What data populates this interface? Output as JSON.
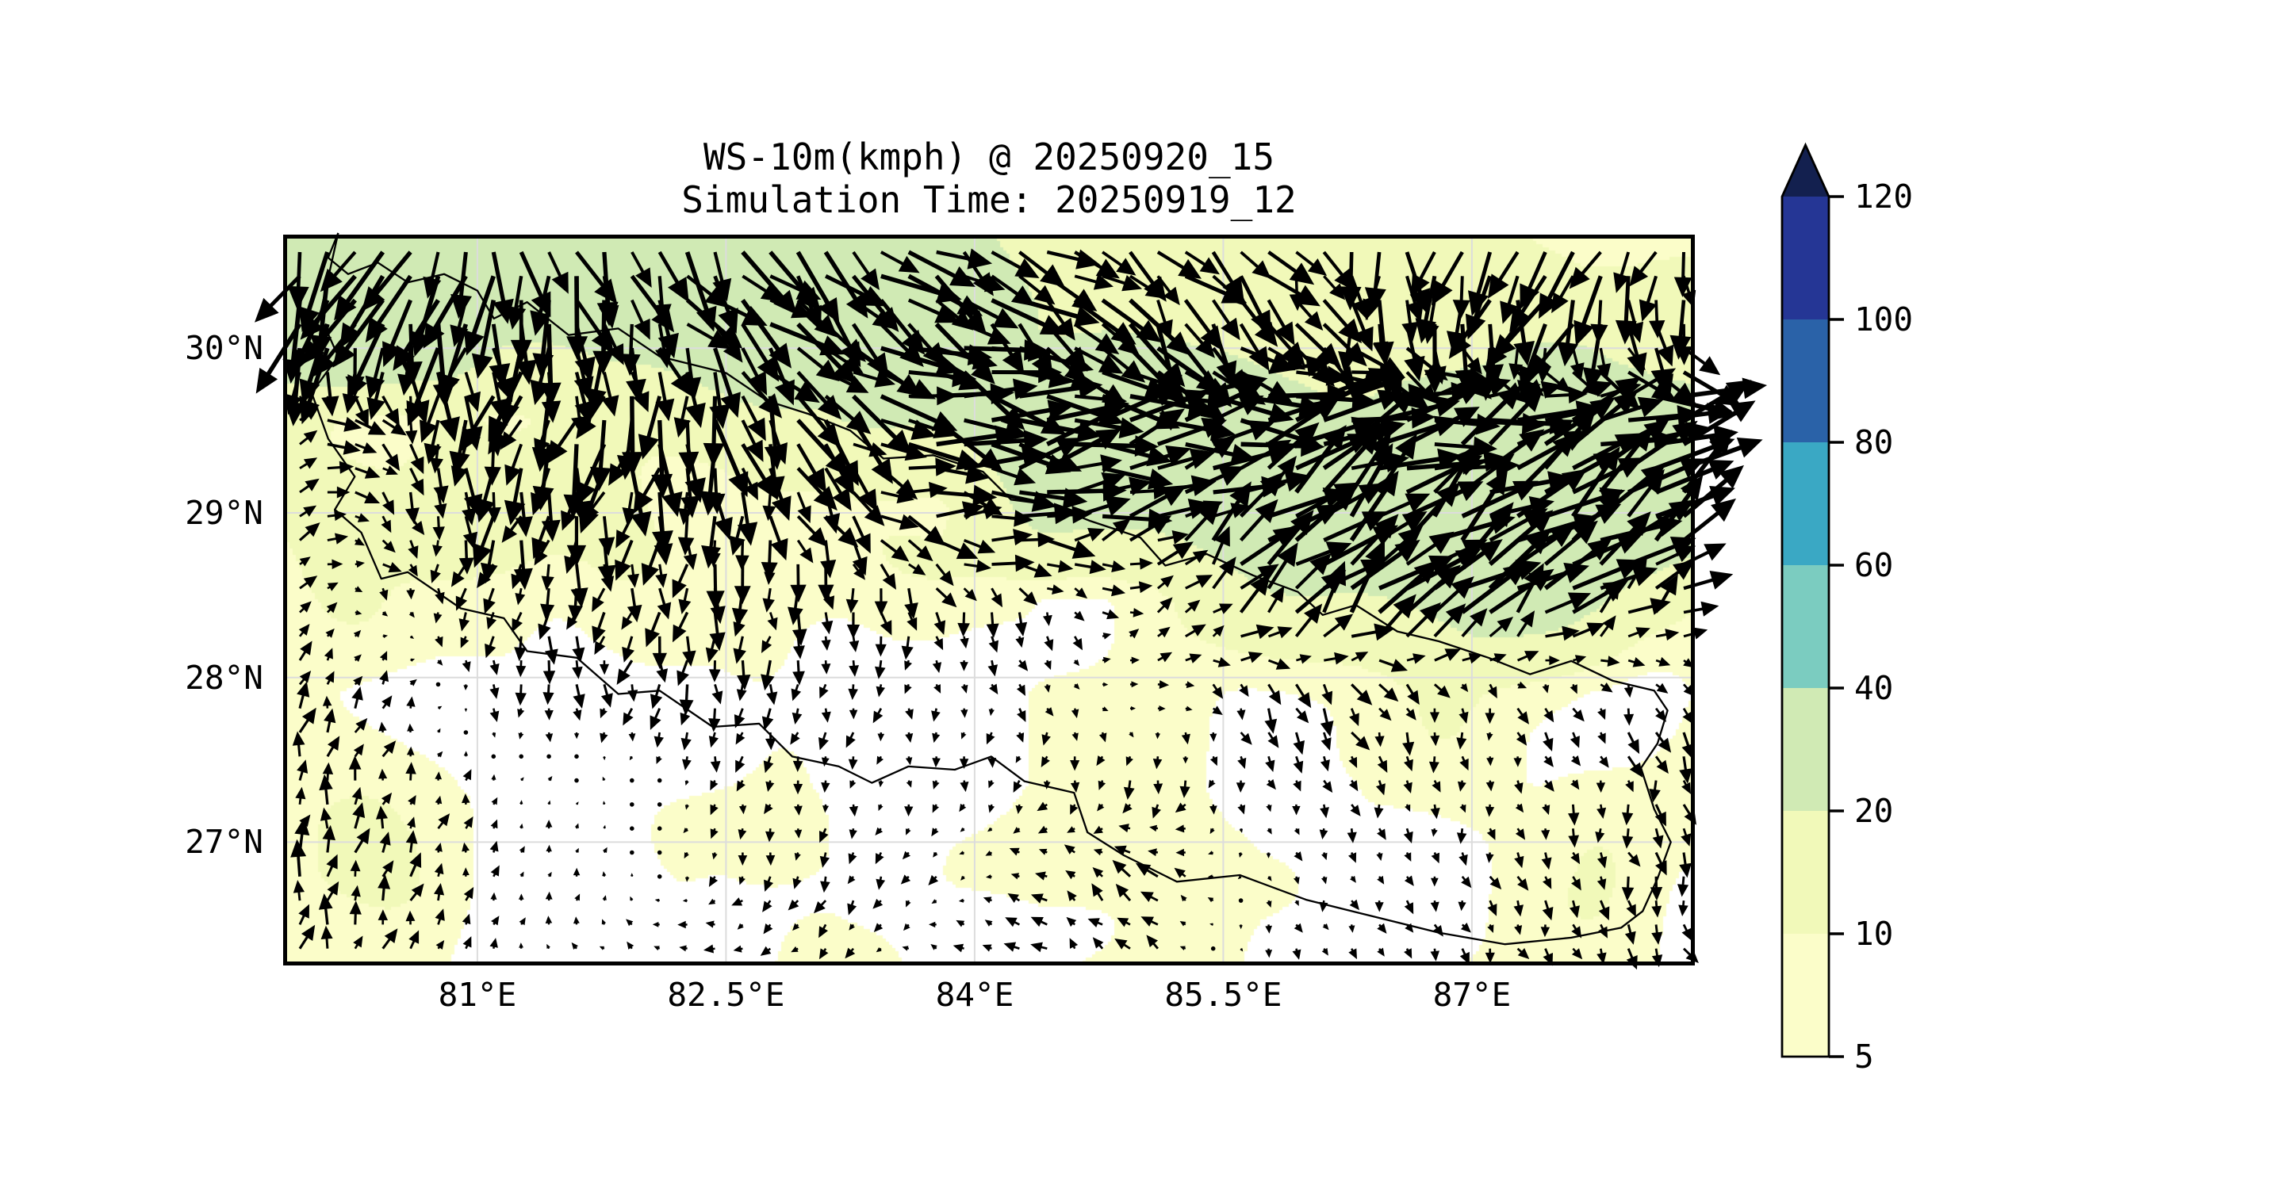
{
  "figure": {
    "title_line1": "WS-10m(kmph) @ 20250920_15",
    "title_line2": "Simulation Time: 20250919_12"
  },
  "axes": {
    "x_ticks": [
      {
        "label": "81°E",
        "lon": 81.0
      },
      {
        "label": "82.5°E",
        "lon": 82.5
      },
      {
        "label": "84°E",
        "lon": 84.0
      },
      {
        "label": "85.5°E",
        "lon": 85.5
      },
      {
        "label": "87°E",
        "lon": 87.0
      }
    ],
    "y_ticks": [
      {
        "label": "30°N",
        "lat": 30.0
      },
      {
        "label": "29°N",
        "lat": 29.0
      },
      {
        "label": "28°N",
        "lat": 28.0
      },
      {
        "label": "27°N",
        "lat": 27.0
      }
    ]
  },
  "colorbar": {
    "levels": [
      5,
      10,
      20,
      40,
      60,
      80,
      100,
      120
    ],
    "tick_labels": [
      "120",
      "100",
      "80",
      "60",
      "40",
      "20",
      "10",
      "5"
    ],
    "segment_colors_bottom_to_top": [
      "#fbfdc9",
      "#f1f9b9",
      "#d0eab4",
      "#7bccc0",
      "#3aa8c4",
      "#2a62a8",
      "#253695"
    ],
    "over_color": "#13204f",
    "under_color": "#ffffff"
  },
  "map": {
    "extent": {
      "lon_min": 79.83,
      "lon_max": 88.35,
      "lat_min": 26.25,
      "lat_max": 30.69
    },
    "grid_color": "#dcdcdc",
    "border_color": "#000000",
    "arrow_color": "#000000"
  },
  "chart_data": {
    "type": "heatmap",
    "subtype": "filled-contour wind speed map with quiver arrows",
    "title": "WS-10m(kmph) @ 20250920_15",
    "subtitle": "Simulation Time: 20250919_12",
    "units": "kmph",
    "contour_levels": [
      5,
      10,
      20,
      40,
      60,
      80,
      100,
      120
    ],
    "legend_position": "right",
    "grid_lons": [
      79.83,
      80.49,
      81.14,
      81.8,
      82.45,
      83.11,
      83.76,
      84.42,
      85.07,
      85.73,
      86.38,
      87.04,
      87.69,
      88.35
    ],
    "grid_lats": [
      30.69,
      30.14,
      29.58,
      29.03,
      28.47,
      27.92,
      27.36,
      26.81,
      26.25
    ],
    "wind_u_kmph": [
      [
        -18,
        -15,
        5,
        8,
        18,
        20,
        25,
        22,
        20,
        15,
        0,
        -10,
        -15,
        -10
      ],
      [
        -20,
        -18,
        0,
        10,
        22,
        28,
        30,
        25,
        18,
        15,
        5,
        -5,
        -8,
        10
      ],
      [
        15,
        10,
        -5,
        -10,
        5,
        18,
        35,
        40,
        42,
        40,
        38,
        40,
        42,
        40
      ],
      [
        12,
        8,
        -8,
        -5,
        0,
        10,
        25,
        35,
        20,
        25,
        30,
        35,
        38,
        35
      ],
      [
        5,
        3,
        -3,
        -2,
        -2,
        0,
        3,
        5,
        8,
        15,
        25,
        28,
        20,
        12
      ],
      [
        4,
        2,
        0,
        -1,
        -2,
        -1,
        0,
        2,
        4,
        6,
        5,
        2,
        3,
        4
      ],
      [
        3,
        2,
        1,
        0,
        -1,
        -1,
        0,
        -2,
        -3,
        1,
        2,
        1,
        2,
        3
      ],
      [
        4,
        3,
        1,
        1,
        -2,
        -3,
        -2,
        -6,
        -8,
        1,
        1,
        2,
        2,
        3
      ],
      [
        4,
        3,
        2,
        -4,
        -6,
        -5,
        -4,
        -6,
        -5,
        2,
        2,
        3,
        3,
        4
      ]
    ],
    "wind_v_kmph": [
      [
        -32,
        -35,
        -30,
        -28,
        -25,
        -22,
        -18,
        -12,
        -15,
        -18,
        -25,
        -28,
        -25,
        -22
      ],
      [
        -38,
        -40,
        -35,
        -30,
        -26,
        -20,
        -15,
        -22,
        -25,
        -20,
        -25,
        -28,
        -28,
        -20
      ],
      [
        8,
        -10,
        -25,
        -28,
        -30,
        -22,
        -8,
        0,
        2,
        5,
        8,
        10,
        12,
        10
      ],
      [
        5,
        -8,
        -20,
        -22,
        -20,
        -15,
        -5,
        5,
        15,
        20,
        25,
        28,
        25,
        20
      ],
      [
        8,
        -5,
        -10,
        -12,
        -15,
        -12,
        -10,
        -8,
        5,
        18,
        25,
        25,
        18,
        10
      ],
      [
        10,
        6,
        -8,
        -10,
        -12,
        -8,
        -6,
        -5,
        2,
        -10,
        -12,
        -6,
        -8,
        -10
      ],
      [
        12,
        8,
        3,
        2,
        -4,
        -5,
        -4,
        -6,
        -8,
        -4,
        -6,
        -5,
        -8,
        -10
      ],
      [
        14,
        10,
        4,
        3,
        -5,
        -6,
        -4,
        4,
        6,
        -3,
        -5,
        -6,
        -8,
        -9
      ],
      [
        12,
        9,
        4,
        2,
        3,
        -4,
        2,
        5,
        4,
        -4,
        -5,
        -6,
        -7,
        -8
      ]
    ],
    "wind_speed_kmph": [
      [
        28,
        34,
        26,
        24,
        25,
        26,
        25,
        16,
        14,
        14,
        12,
        10,
        6,
        10
      ],
      [
        30,
        36,
        24,
        22,
        24,
        26,
        28,
        18,
        16,
        14,
        14,
        10,
        16,
        14
      ],
      [
        16,
        8,
        10,
        18,
        16,
        18,
        26,
        30,
        30,
        28,
        26,
        28,
        30,
        28
      ],
      [
        12,
        10,
        14,
        14,
        6,
        6,
        10,
        26,
        22,
        24,
        26,
        28,
        26,
        24
      ],
      [
        8,
        6,
        8,
        8,
        6,
        6,
        8,
        4,
        5,
        16,
        22,
        24,
        18,
        14
      ],
      [
        7,
        5,
        6,
        4,
        4,
        4,
        5,
        6,
        6,
        9,
        11,
        9,
        7,
        8
      ],
      [
        8,
        6,
        3,
        2,
        2,
        3,
        3,
        4,
        6,
        4,
        4,
        3,
        6,
        8
      ],
      [
        9,
        7,
        4,
        3,
        3,
        5,
        4,
        7,
        8,
        3,
        3,
        4,
        6,
        7
      ],
      [
        8,
        7,
        5,
        4,
        5,
        6,
        4,
        8,
        7,
        4,
        5,
        6,
        7,
        7
      ]
    ]
  },
  "nepal_border_lonlat": [
    [
      80.16,
      30.7
    ],
    [
      80.1,
      30.55
    ],
    [
      80.22,
      30.45
    ],
    [
      80.4,
      30.52
    ],
    [
      80.58,
      30.4
    ],
    [
      80.8,
      30.45
    ],
    [
      81.0,
      30.35
    ],
    [
      81.1,
      30.18
    ],
    [
      81.3,
      30.28
    ],
    [
      81.55,
      30.08
    ],
    [
      81.85,
      30.12
    ],
    [
      82.1,
      29.95
    ],
    [
      82.5,
      29.85
    ],
    [
      82.75,
      29.68
    ],
    [
      83.0,
      29.6
    ],
    [
      83.25,
      29.5
    ],
    [
      83.45,
      29.33
    ],
    [
      83.75,
      29.35
    ],
    [
      84.05,
      29.25
    ],
    [
      84.22,
      29.08
    ],
    [
      84.45,
      29.05
    ],
    [
      84.7,
      28.95
    ],
    [
      85.0,
      28.85
    ],
    [
      85.15,
      28.68
    ],
    [
      85.4,
      28.75
    ],
    [
      85.68,
      28.62
    ],
    [
      85.95,
      28.52
    ],
    [
      86.1,
      28.38
    ],
    [
      86.3,
      28.44
    ],
    [
      86.55,
      28.28
    ],
    [
      86.8,
      28.22
    ],
    [
      87.1,
      28.12
    ],
    [
      87.35,
      28.02
    ],
    [
      87.6,
      28.1
    ],
    [
      87.85,
      27.98
    ],
    [
      88.1,
      27.92
    ],
    [
      88.18,
      27.8
    ],
    [
      88.12,
      27.6
    ],
    [
      88.02,
      27.45
    ],
    [
      88.1,
      27.2
    ],
    [
      88.2,
      27.0
    ],
    [
      88.12,
      26.78
    ],
    [
      88.03,
      26.58
    ],
    [
      87.9,
      26.48
    ],
    [
      87.6,
      26.42
    ],
    [
      87.2,
      26.38
    ],
    [
      86.8,
      26.45
    ],
    [
      86.4,
      26.55
    ],
    [
      86.0,
      26.65
    ],
    [
      85.6,
      26.8
    ],
    [
      85.22,
      26.76
    ],
    [
      84.9,
      26.92
    ],
    [
      84.68,
      27.06
    ],
    [
      84.6,
      27.3
    ],
    [
      84.3,
      27.37
    ],
    [
      84.1,
      27.52
    ],
    [
      83.88,
      27.44
    ],
    [
      83.6,
      27.46
    ],
    [
      83.38,
      27.36
    ],
    [
      83.18,
      27.46
    ],
    [
      82.9,
      27.52
    ],
    [
      82.7,
      27.72
    ],
    [
      82.42,
      27.7
    ],
    [
      82.1,
      27.92
    ],
    [
      81.85,
      27.9
    ],
    [
      81.6,
      28.12
    ],
    [
      81.3,
      28.16
    ],
    [
      81.16,
      28.36
    ],
    [
      80.9,
      28.42
    ],
    [
      80.58,
      28.64
    ],
    [
      80.42,
      28.6
    ],
    [
      80.3,
      28.88
    ],
    [
      80.14,
      29.02
    ],
    [
      80.26,
      29.22
    ],
    [
      80.1,
      29.45
    ],
    [
      80.0,
      29.73
    ],
    [
      80.16,
      29.95
    ],
    [
      80.05,
      30.2
    ],
    [
      80.16,
      30.7
    ]
  ]
}
